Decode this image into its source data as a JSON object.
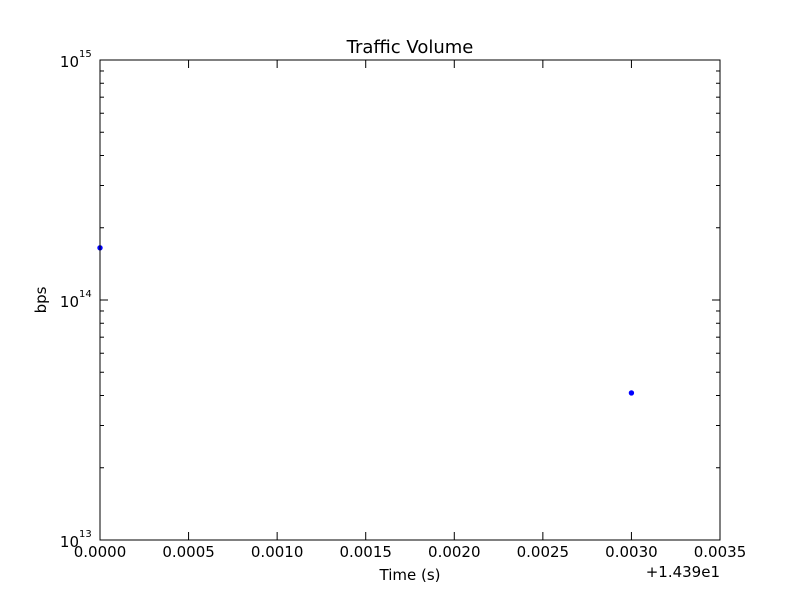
{
  "chart_data": {
    "type": "scatter",
    "title": "Traffic Volume",
    "xlabel": "Time (s)",
    "ylabel": "bps",
    "x_offset_label": "+1.439e1",
    "x_offset": 14.39,
    "xlim": [
      0.0,
      0.0035
    ],
    "ylim": [
      10000000000000.0,
      1000000000000000.0
    ],
    "yscale": "log",
    "x_ticks": [
      {
        "value": 0.0,
        "label": "0.0000"
      },
      {
        "value": 0.0005,
        "label": "0.0005"
      },
      {
        "value": 0.001,
        "label": "0.0010"
      },
      {
        "value": 0.0015,
        "label": "0.0015"
      },
      {
        "value": 0.002,
        "label": "0.0020"
      },
      {
        "value": 0.0025,
        "label": "0.0025"
      },
      {
        "value": 0.003,
        "label": "0.0030"
      },
      {
        "value": 0.0035,
        "label": "0.0035"
      }
    ],
    "y_ticks": [
      {
        "value": 10000000000000.0,
        "base": "10",
        "exponent": "13"
      },
      {
        "value": 100000000000000.0,
        "base": "10",
        "exponent": "14"
      },
      {
        "value": 1000000000000000.0,
        "base": "10",
        "exponent": "15"
      }
    ],
    "grid": false,
    "series": [
      {
        "color": "#0000ff",
        "points": [
          {
            "x": 0.0,
            "y": 165000000000000.0
          },
          {
            "x": 0.003,
            "y": 41000000000000.0
          }
        ]
      }
    ]
  }
}
